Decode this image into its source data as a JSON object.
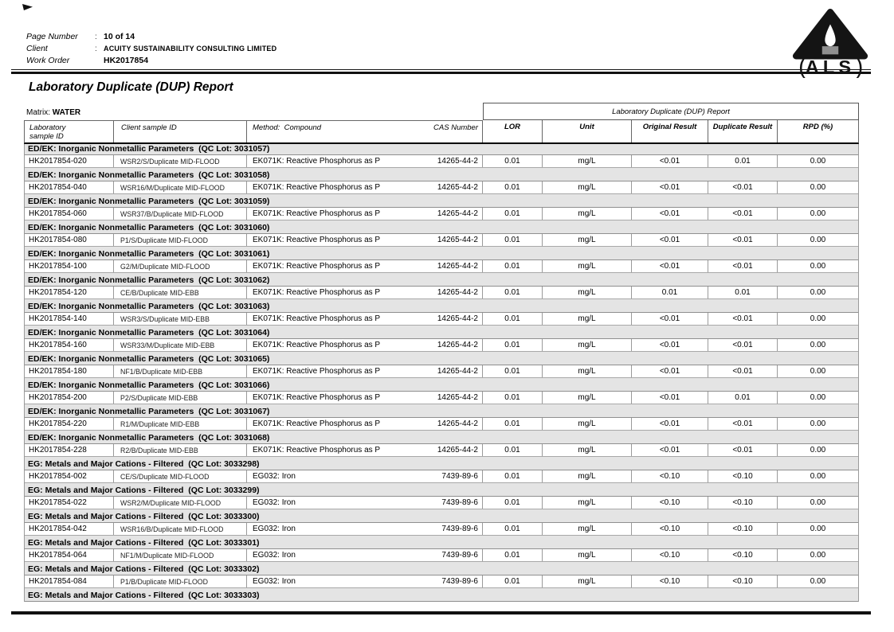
{
  "header": {
    "fields": [
      {
        "label": "Page Number",
        "sep": ":",
        "value": "10 of 14"
      },
      {
        "label": "Client",
        "sep": ":",
        "value": "ACUITY SUSTAINABILITY CONSULTING LIMITED"
      },
      {
        "label": "Work Order",
        "sep": "",
        "value": "HK2017854"
      }
    ]
  },
  "logo": {
    "text": "ALS",
    "paren_left": "(",
    "paren_right": ")"
  },
  "title": "Laboratory Duplicate (DUP) Report",
  "matrix_label": "Matrix: ",
  "matrix_value": "WATER",
  "table": {
    "spanner": "Laboratory Duplicate (DUP) Report",
    "columns": {
      "lab_line1": "Laboratory",
      "lab_line2": "sample ID",
      "client": "Client sample ID",
      "method": "Method:  Compound",
      "cas": "CAS Number",
      "lor": "LOR",
      "unit": "Unit",
      "original": "Original Result",
      "duplicate": "Duplicate Result",
      "rpd": "RPD (%)"
    },
    "sections": [
      {
        "title": "ED/EK: Inorganic Nonmetallic Parameters  (QC Lot: 3031057)",
        "rows": [
          [
            "HK2017854-020",
            "WSR2/S/Duplicate MID-FLOOD",
            "EK071K: Reactive Phosphorus as P",
            "14265-44-2",
            "0.01",
            "mg/L",
            "<0.01",
            "0.01",
            "0.00"
          ]
        ]
      },
      {
        "title": "ED/EK: Inorganic Nonmetallic Parameters  (QC Lot: 3031058)",
        "rows": [
          [
            "HK2017854-040",
            "WSR16/M/Duplicate MID-FLOOD",
            "EK071K: Reactive Phosphorus as P",
            "14265-44-2",
            "0.01",
            "mg/L",
            "<0.01",
            "<0.01",
            "0.00"
          ]
        ]
      },
      {
        "title": "ED/EK: Inorganic Nonmetallic Parameters  (QC Lot: 3031059)",
        "rows": [
          [
            "HK2017854-060",
            "WSR37/B/Duplicate MID-FLOOD",
            "EK071K: Reactive Phosphorus as P",
            "14265-44-2",
            "0.01",
            "mg/L",
            "<0.01",
            "<0.01",
            "0.00"
          ]
        ]
      },
      {
        "title": "ED/EK: Inorganic Nonmetallic Parameters  (QC Lot: 3031060)",
        "rows": [
          [
            "HK2017854-080",
            "P1/S/Duplicate MID-FLOOD",
            "EK071K: Reactive Phosphorus as P",
            "14265-44-2",
            "0.01",
            "mg/L",
            "<0.01",
            "<0.01",
            "0.00"
          ]
        ]
      },
      {
        "title": "ED/EK: Inorganic Nonmetallic Parameters  (QC Lot: 3031061)",
        "rows": [
          [
            "HK2017854-100",
            "G2/M/Duplicate MID-FLOOD",
            "EK071K: Reactive Phosphorus as P",
            "14265-44-2",
            "0.01",
            "mg/L",
            "<0.01",
            "<0.01",
            "0.00"
          ]
        ]
      },
      {
        "title": "ED/EK: Inorganic Nonmetallic Parameters  (QC Lot: 3031062)",
        "rows": [
          [
            "HK2017854-120",
            "CE/B/Duplicate MID-EBB",
            "EK071K: Reactive Phosphorus as P",
            "14265-44-2",
            "0.01",
            "mg/L",
            "0.01",
            "0.01",
            "0.00"
          ]
        ]
      },
      {
        "title": "ED/EK: Inorganic Nonmetallic Parameters  (QC Lot: 3031063)",
        "rows": [
          [
            "HK2017854-140",
            "WSR3/S/Duplicate MID-EBB",
            "EK071K: Reactive Phosphorus as P",
            "14265-44-2",
            "0.01",
            "mg/L",
            "<0.01",
            "<0.01",
            "0.00"
          ]
        ]
      },
      {
        "title": "ED/EK: Inorganic Nonmetallic Parameters  (QC Lot: 3031064)",
        "rows": [
          [
            "HK2017854-160",
            "WSR33/M/Duplicate MID-EBB",
            "EK071K: Reactive Phosphorus as P",
            "14265-44-2",
            "0.01",
            "mg/L",
            "<0.01",
            "<0.01",
            "0.00"
          ]
        ]
      },
      {
        "title": "ED/EK: Inorganic Nonmetallic Parameters  (QC Lot: 3031065)",
        "rows": [
          [
            "HK2017854-180",
            "NF1/B/Duplicate MID-EBB",
            "EK071K: Reactive Phosphorus as P",
            "14265-44-2",
            "0.01",
            "mg/L",
            "<0.01",
            "<0.01",
            "0.00"
          ]
        ]
      },
      {
        "title": "ED/EK: Inorganic Nonmetallic Parameters  (QC Lot: 3031066)",
        "rows": [
          [
            "HK2017854-200",
            "P2/S/Duplicate MID-EBB",
            "EK071K: Reactive Phosphorus as P",
            "14265-44-2",
            "0.01",
            "mg/L",
            "<0.01",
            "0.01",
            "0.00"
          ]
        ]
      },
      {
        "title": "ED/EK: Inorganic Nonmetallic Parameters  (QC Lot: 3031067)",
        "rows": [
          [
            "HK2017854-220",
            "R1/M/Duplicate MID-EBB",
            "EK071K: Reactive Phosphorus as P",
            "14265-44-2",
            "0.01",
            "mg/L",
            "<0.01",
            "<0.01",
            "0.00"
          ]
        ]
      },
      {
        "title": "ED/EK: Inorganic Nonmetallic Parameters  (QC Lot: 3031068)",
        "rows": [
          [
            "HK2017854-228",
            "R2/B/Duplicate MID-EBB",
            "EK071K: Reactive Phosphorus as P",
            "14265-44-2",
            "0.01",
            "mg/L",
            "<0.01",
            "<0.01",
            "0.00"
          ]
        ]
      },
      {
        "title": "EG: Metals and Major Cations - Filtered  (QC Lot: 3033298)",
        "rows": [
          [
            "HK2017854-002",
            "CE/S/Duplicate MID-FLOOD",
            "EG032: Iron",
            "7439-89-6",
            "0.01",
            "mg/L",
            "<0.10",
            "<0.10",
            "0.00"
          ]
        ]
      },
      {
        "title": "EG: Metals and Major Cations - Filtered  (QC Lot: 3033299)",
        "rows": [
          [
            "HK2017854-022",
            "WSR2/M/Duplicate MID-FLOOD",
            "EG032: Iron",
            "7439-89-6",
            "0.01",
            "mg/L",
            "<0.10",
            "<0.10",
            "0.00"
          ]
        ]
      },
      {
        "title": "EG: Metals and Major Cations - Filtered  (QC Lot: 3033300)",
        "rows": [
          [
            "HK2017854-042",
            "WSR16/B/Duplicate MID-FLOOD",
            "EG032: Iron",
            "7439-89-6",
            "0.01",
            "mg/L",
            "<0.10",
            "<0.10",
            "0.00"
          ]
        ]
      },
      {
        "title": "EG: Metals and Major Cations - Filtered  (QC Lot: 3033301)",
        "rows": [
          [
            "HK2017854-064",
            "NF1/M/Duplicate MID-FLOOD",
            "EG032: Iron",
            "7439-89-6",
            "0.01",
            "mg/L",
            "<0.10",
            "<0.10",
            "0.00"
          ]
        ]
      },
      {
        "title": "EG: Metals and Major Cations - Filtered  (QC Lot: 3033302)",
        "rows": [
          [
            "HK2017854-084",
            "P1/B/Duplicate MID-FLOOD",
            "EG032: Iron",
            "7439-89-6",
            "0.01",
            "mg/L",
            "<0.10",
            "<0.10",
            "0.00"
          ]
        ]
      },
      {
        "title": "EG: Metals and Major Cations - Filtered  (QC Lot: 3033303)",
        "rows": []
      }
    ]
  }
}
